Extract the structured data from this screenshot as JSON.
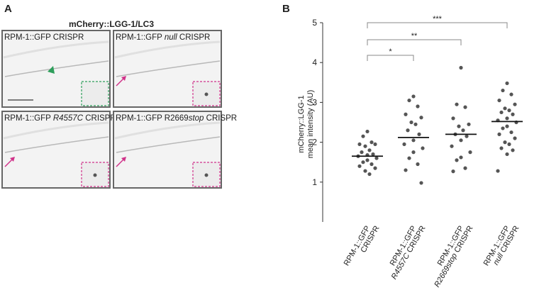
{
  "panel_labels": [
    "A",
    "B"
  ],
  "panel_a": {
    "title": "mCherry::LGG-1/LC3",
    "images": [
      {
        "label": [
          "RPM-1::GFP CRISPR"
        ]
      },
      {
        "label": [
          "RPM-1::GFP ",
          "null",
          " CRISPR"
        ]
      },
      {
        "label": [
          "RPM-1::GFP ",
          "R4557C",
          " CRISPR"
        ]
      },
      {
        "label": [
          "RPM-1::GFP R2669",
          "stop",
          " CRISPR"
        ]
      }
    ]
  },
  "chart_data": {
    "type": "dotplot",
    "y_label": [
      "mCherry::LGG-1",
      "mean intensity (AU)"
    ],
    "categories": [
      [
        [
          "RPM-1::GFP"
        ],
        [
          "CRISPR"
        ]
      ],
      [
        [
          "RPM-1::GFP"
        ],
        [
          "",
          "R4557C",
          " CRISPR"
        ]
      ],
      [
        [
          "RPM-1::GFP"
        ],
        [
          "",
          "R2669stop",
          " CRISPR"
        ]
      ],
      [
        [
          "RPM-1::GFP"
        ],
        [
          "",
          "null",
          " CRISPR"
        ]
      ]
    ],
    "values": [
      [
        2.27,
        2.15,
        2.0,
        1.95,
        1.95,
        1.9,
        1.8,
        1.75,
        1.7,
        1.68,
        1.65,
        1.6,
        1.55,
        1.5,
        1.45,
        1.4,
        1.35,
        1.28,
        1.2
      ],
      [
        3.15,
        3.05,
        2.9,
        2.7,
        2.62,
        2.5,
        2.45,
        2.3,
        2.2,
        2.05,
        1.95,
        1.85,
        1.75,
        1.6,
        1.45,
        1.3,
        0.98
      ],
      [
        3.87,
        2.95,
        2.88,
        2.6,
        2.45,
        2.4,
        2.3,
        2.2,
        2.15,
        2.05,
        1.9,
        1.75,
        1.62,
        1.55,
        1.35,
        1.27
      ],
      [
        3.48,
        3.3,
        3.2,
        3.05,
        2.95,
        2.85,
        2.8,
        2.75,
        2.7,
        2.6,
        2.55,
        2.5,
        2.4,
        2.35,
        2.25,
        2.2,
        2.1,
        2.0,
        1.95,
        1.85,
        1.8,
        1.7,
        1.28
      ]
    ],
    "means": [
      1.65,
      2.12,
      2.2,
      2.52
    ],
    "color": "#555555",
    "ylim": [
      0,
      5
    ],
    "yticks": [
      1,
      2,
      3,
      4,
      5
    ],
    "significance": [
      "*",
      "**",
      "***"
    ]
  }
}
